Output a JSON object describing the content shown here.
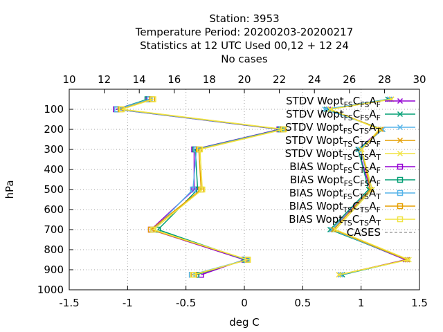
{
  "chart_data": {
    "type": "line",
    "title_lines": [
      "Station:     3953",
      "Temperature  Period: 20200203-20200217",
      "Statistics at 12 UTC  Used  00,12  + 12 24",
      "No cases"
    ],
    "xlabel": "deg C",
    "ylabel": "hPa",
    "xlim": [
      -1.5,
      1.5
    ],
    "x2lim": [
      10,
      30
    ],
    "ylim": [
      1000,
      0
    ],
    "xticks": [
      "-1.5",
      "-1",
      "-0.5",
      "0",
      "0.5",
      "1",
      "1.5"
    ],
    "x2ticks": [
      "10",
      "12",
      "14",
      "16",
      "18",
      "20",
      "22",
      "24",
      "26",
      "28",
      "30"
    ],
    "yticks": [
      "100",
      "200",
      "300",
      "400",
      "500",
      "600",
      "700",
      "800",
      "900",
      "1000"
    ],
    "grid": true,
    "legend_position": "top-right",
    "levels": [
      50,
      100,
      200,
      300,
      500,
      700,
      850,
      925
    ],
    "series": [
      {
        "label": [
          "STDV Wopt",
          "FS",
          "C",
          "FS",
          "A",
          "F"
        ],
        "axis": "top",
        "color": "#9400d3",
        "marker": "x",
        "values": [
          28.3,
          24.8,
          27.8,
          26.5,
          27.2,
          25.0,
          29.2,
          25.5
        ]
      },
      {
        "label": [
          "STDV Wopt",
          "FS",
          "C",
          "FS",
          "A",
          "F"
        ],
        "axis": "top",
        "color": "#009e73",
        "marker": "x",
        "values": [
          28.2,
          24.7,
          27.9,
          26.5,
          27.1,
          24.9,
          29.3,
          25.6
        ]
      },
      {
        "label": [
          "STDV Wopt",
          "FS",
          "C",
          "TS",
          "A",
          "T"
        ],
        "axis": "top",
        "color": "#56b4e9",
        "marker": "x",
        "values": [
          28.3,
          24.6,
          27.9,
          26.6,
          27.3,
          25.0,
          29.3,
          25.5
        ]
      },
      {
        "label": [
          "STDV Wopt",
          "TS",
          "C",
          "TS",
          "A",
          "F"
        ],
        "axis": "top",
        "color": "#e69f00",
        "marker": "x",
        "values": [
          28.4,
          24.9,
          27.8,
          26.7,
          27.2,
          25.1,
          29.3,
          25.4
        ]
      },
      {
        "label": [
          "STDV Wopt",
          "TS",
          "C",
          "TS",
          "A",
          "T"
        ],
        "axis": "top",
        "color": "#f0e442",
        "marker": "x",
        "values": [
          28.4,
          24.9,
          27.7,
          26.7,
          27.3,
          25.2,
          29.4,
          25.4
        ]
      },
      {
        "label": [
          "BIAS Wopt",
          "FS",
          "C",
          "TS",
          "A",
          "F"
        ],
        "axis": "bottom",
        "color": "#9400d3",
        "marker": "square",
        "values": [
          -0.82,
          -1.1,
          0.3,
          -0.43,
          -0.43,
          -0.8,
          0.0,
          -0.37
        ]
      },
      {
        "label": [
          "BIAS Wopt",
          "FS",
          "C",
          "FS",
          "A",
          "F"
        ],
        "axis": "bottom",
        "color": "#009e73",
        "marker": "square",
        "values": [
          -0.83,
          -1.09,
          0.31,
          -0.42,
          -0.4,
          -0.74,
          0.01,
          -0.41
        ]
      },
      {
        "label": [
          "BIAS Wopt",
          "FS",
          "C",
          "TS",
          "A",
          "T"
        ],
        "axis": "bottom",
        "color": "#56b4e9",
        "marker": "square",
        "values": [
          -0.81,
          -1.09,
          0.32,
          -0.41,
          -0.44,
          -0.78,
          0.02,
          -0.45
        ]
      },
      {
        "label": [
          "BIAS Wopt",
          "TS",
          "C",
          "TS",
          "A",
          "F"
        ],
        "axis": "bottom",
        "color": "#e69f00",
        "marker": "square",
        "values": [
          -0.79,
          -1.06,
          0.33,
          -0.39,
          -0.37,
          -0.8,
          0.03,
          -0.43
        ]
      },
      {
        "label": [
          "BIAS Wopt",
          "TS",
          "C",
          "TS",
          "A",
          "T"
        ],
        "axis": "bottom",
        "color": "#f0e442",
        "marker": "square",
        "values": [
          -0.78,
          -1.05,
          0.34,
          -0.38,
          -0.36,
          -0.78,
          0.03,
          -0.44
        ]
      },
      {
        "label": [
          "CASES",
          "",
          "",
          "",
          "",
          ""
        ],
        "axis": "none",
        "color": "#a0a0a0",
        "marker": "none",
        "values": []
      }
    ]
  }
}
